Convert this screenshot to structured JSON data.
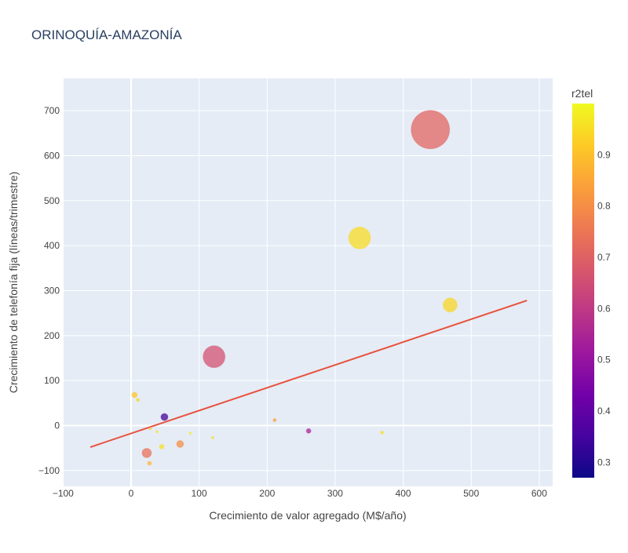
{
  "chart_data": {
    "type": "scatter",
    "title": "ORINOQUÍA-AMAZONÍA",
    "xlabel": "Crecimiento de valor agregado (M$/año)",
    "ylabel": "Crecimiento de telefonía fija (líneas/trimestre)",
    "xlim": [
      -100,
      620
    ],
    "ylim": [
      -125,
      770
    ],
    "xticks": [
      "−100",
      "0",
      "100",
      "200",
      "300",
      "400",
      "500",
      "600"
    ],
    "yticks": [
      "−100",
      "0",
      "100",
      "200",
      "300",
      "400",
      "500",
      "600",
      "700"
    ],
    "grid": true,
    "colorbar": {
      "title": "r2tel",
      "range": [
        0.27,
        1.0
      ],
      "ticks": [
        "0.3",
        "0.4",
        "0.5",
        "0.6",
        "0.7",
        "0.8",
        "0.9"
      ],
      "colorscale": [
        "#0d0887",
        "#46039f",
        "#7201a8",
        "#9c179e",
        "#bd3786",
        "#d8576b",
        "#ed7953",
        "#fb9f3a",
        "#fdca26",
        "#f0f921"
      ]
    },
    "points": [
      {
        "x": 440,
        "y": 658,
        "r2tel": 0.71,
        "size": 48
      },
      {
        "x": 336,
        "y": 417,
        "r2tel": 0.95,
        "size": 27
      },
      {
        "x": 469,
        "y": 268,
        "r2tel": 0.94,
        "size": 17
      },
      {
        "x": 122,
        "y": 153,
        "r2tel": 0.66,
        "size": 27
      },
      {
        "x": 5,
        "y": 68,
        "r2tel": 0.91,
        "size": 6
      },
      {
        "x": 10,
        "y": 57,
        "r2tel": 0.94,
        "size": 3
      },
      {
        "x": 49,
        "y": 19,
        "r2tel": 0.35,
        "size": 8
      },
      {
        "x": 211,
        "y": 12,
        "r2tel": 0.84,
        "size": 3
      },
      {
        "x": 261,
        "y": -12,
        "r2tel": 0.55,
        "size": 5
      },
      {
        "x": 369,
        "y": -16,
        "r2tel": 0.96,
        "size": 3
      },
      {
        "x": 28,
        "y": -7,
        "r2tel": 0.92,
        "size": 2
      },
      {
        "x": 38,
        "y": -14,
        "r2tel": 0.97,
        "size": 2
      },
      {
        "x": 87,
        "y": -17,
        "r2tel": 0.98,
        "size": 2
      },
      {
        "x": 120,
        "y": -27,
        "r2tel": 0.95,
        "size": 2
      },
      {
        "x": 72,
        "y": -41,
        "r2tel": 0.8,
        "size": 8
      },
      {
        "x": 45,
        "y": -47,
        "r2tel": 0.96,
        "size": 5
      },
      {
        "x": 23,
        "y": -61,
        "r2tel": 0.74,
        "size": 11
      },
      {
        "x": 27,
        "y": -84,
        "r2tel": 0.88,
        "size": 4
      }
    ],
    "trendline": {
      "x": [
        -60,
        582
      ],
      "y": [
        -48,
        278
      ],
      "color": "#e8523c"
    }
  }
}
